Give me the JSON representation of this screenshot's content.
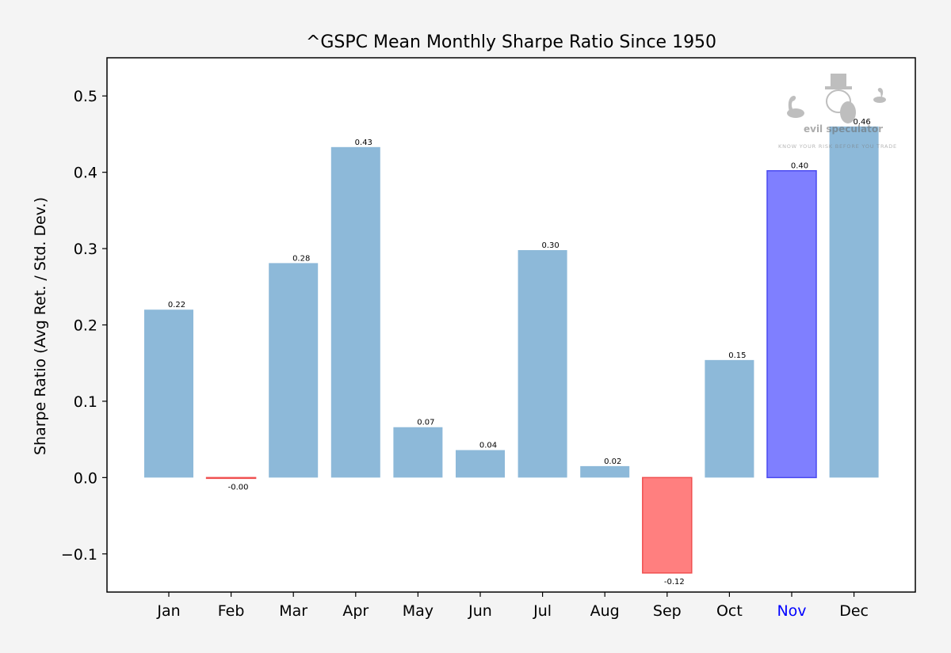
{
  "chart_data": {
    "type": "bar",
    "title": "^GSPC Mean Monthly Sharpe Ratio Since 1950",
    "xlabel": "",
    "ylabel": "Sharpe Ratio (Avg Ret. / Std. Dev.)",
    "ylim": [
      -0.15,
      0.55
    ],
    "yticks": [
      -0.1,
      0.0,
      0.1,
      0.2,
      0.3,
      0.4,
      0.5
    ],
    "ytick_labels": [
      "−0.1",
      "0.0",
      "0.1",
      "0.2",
      "0.3",
      "0.4",
      "0.5"
    ],
    "grid": false,
    "categories": [
      "Jan",
      "Feb",
      "Mar",
      "Apr",
      "May",
      "Jun",
      "Jul",
      "Aug",
      "Sep",
      "Oct",
      "Nov",
      "Dec"
    ],
    "values": [
      0.22,
      -0.001,
      0.281,
      0.433,
      0.066,
      0.036,
      0.298,
      0.015,
      -0.125,
      0.154,
      0.402,
      0.46
    ],
    "data_labels": [
      "0.22",
      "-0.00",
      "0.28",
      "0.43",
      "0.07",
      "0.04",
      "0.30",
      "0.02",
      "-0.12",
      "0.15",
      "0.40",
      "0.46"
    ],
    "highlight": {
      "current_month": "Nov",
      "current_month_color": "#0000ff",
      "current_month_fill": "#7f7fff",
      "current_month_edge": "#4a4af0"
    },
    "colors": {
      "positive": "#8db9d9",
      "negative": "#ff7f7f",
      "negative_edge": "#f05050",
      "axis": "#000000",
      "tick_label": "#000000"
    }
  },
  "watermark": {
    "brand": "evil speculator",
    "tagline": "KNOW YOUR RISK BEFORE YOU TRADE"
  }
}
